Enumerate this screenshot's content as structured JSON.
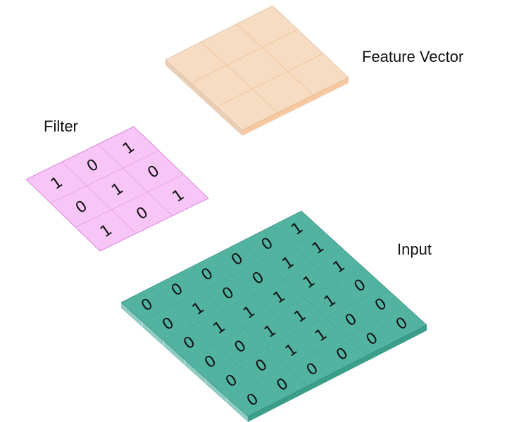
{
  "labels": {
    "feature_vector": "Feature Vector",
    "filter": "Filter",
    "input": "Input"
  },
  "colors": {
    "feature_top": "#f6dcc2",
    "feature_line": "#f2c59b",
    "feature_side_left": "#e9cfb7",
    "feature_side_right": "#f7c7a0",
    "filter_top": "#f7c6f6",
    "filter_line": "#d66fd4",
    "input_top": "#52b3a0",
    "input_line": "#3f9f8d",
    "input_side_left": "#8fcbc0",
    "input_side_right": "#3a9e8a"
  },
  "filter": {
    "rows": 3,
    "cols": 3,
    "values": [
      [
        "1",
        "0",
        "1"
      ],
      [
        "0",
        "1",
        "0"
      ],
      [
        "1",
        "0",
        "1"
      ]
    ]
  },
  "input": {
    "rows": 6,
    "cols": 6,
    "values": [
      [
        "1",
        "1",
        "1",
        "0",
        "0",
        "0"
      ],
      [
        "0",
        "1",
        "1",
        "1",
        "0",
        "0"
      ],
      [
        "0",
        "0",
        "1",
        "1",
        "1",
        "0"
      ],
      [
        "0",
        "0",
        "1",
        "1",
        "1",
        "0"
      ],
      [
        "0",
        "1",
        "1",
        "0",
        "0",
        "0"
      ],
      [
        "0",
        "0",
        "0",
        "0",
        "0",
        "0"
      ]
    ]
  },
  "feature_vector": {
    "rows": 3,
    "cols": 3
  }
}
